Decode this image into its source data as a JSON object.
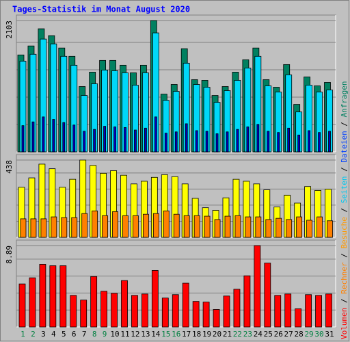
{
  "legend_separator": " / ",
  "chart_data": [
    {
      "type": "bar",
      "title": "Tages-Statistik im Monat August 2020",
      "ylim": [
        0,
        2103
      ],
      "yticks": [
        2103
      ],
      "series": [
        {
          "name": "Anfragen",
          "color": "#008060",
          "legend_color": "#008060",
          "values": [
            1552,
            1696,
            1971,
            1861,
            1663,
            1530,
            1046,
            1277,
            1464,
            1464,
            1387,
            1266,
            1387,
            2103,
            925,
            1079,
            1652,
            1156,
            1145,
            903,
            1046,
            1277,
            1475,
            1663,
            1156,
            1035,
            1398,
            760,
            1200,
            1057,
            1112
          ]
        },
        {
          "name": "Dateien",
          "color": "#00d8f8",
          "legend_color": "#0040ff",
          "values": [
            1453,
            1563,
            1806,
            1729,
            1530,
            1387,
            903,
            1090,
            1310,
            1299,
            1266,
            1068,
            1266,
            1905,
            826,
            969,
            1420,
            1079,
            1035,
            793,
            980,
            1145,
            1343,
            1530,
            1057,
            958,
            1233,
            639,
            1068,
            958,
            991
          ]
        },
        {
          "name": "Seiten",
          "color": "#0000c0",
          "legend_color": "#00c8f0",
          "values": [
            420,
            480,
            560,
            520,
            470,
            430,
            330,
            360,
            410,
            400,
            390,
            350,
            380,
            560,
            300,
            320,
            450,
            340,
            330,
            290,
            320,
            360,
            400,
            440,
            330,
            310,
            380,
            270,
            340,
            310,
            330
          ]
        }
      ]
    },
    {
      "type": "bar",
      "ylim": [
        0,
        438
      ],
      "yticks": [
        438
      ],
      "series": [
        {
          "name": "Besuche",
          "color": "#ffff00",
          "legend_color": "#ff9900",
          "values": [
            284,
            337,
            415,
            389,
            284,
            329,
            438,
            408,
            363,
            378,
            352,
            303,
            318,
            340,
            355,
            344,
            303,
            221,
            168,
            153,
            224,
            329,
            318,
            303,
            269,
            172,
            239,
            194,
            288,
            266,
            273
          ]
        },
        {
          "name": "Rechner",
          "color": "#ff8000",
          "legend_color": "#ff8000",
          "values": [
            105,
            105,
            105,
            116,
            112,
            112,
            135,
            150,
            123,
            146,
            123,
            123,
            131,
            135,
            150,
            131,
            123,
            123,
            120,
            101,
            120,
            123,
            116,
            116,
            101,
            108,
            101,
            116,
            97,
            116,
            94
          ]
        }
      ]
    },
    {
      "type": "bar",
      "ylim": [
        0,
        8.89
      ],
      "yticks": [
        8.89
      ],
      "categories": [
        "1",
        "2",
        "3",
        "4",
        "5",
        "6",
        "7",
        "8",
        "9",
        "10",
        "11",
        "12",
        "13",
        "14",
        "15",
        "16",
        "17",
        "18",
        "19",
        "20",
        "21",
        "22",
        "23",
        "24",
        "25",
        "26",
        "27",
        "28",
        "29",
        "30",
        "31"
      ],
      "category_colors": [
        "#008040",
        "#008040",
        "#000000",
        "#000000",
        "#000000",
        "#000000",
        "#000000",
        "#008040",
        "#008040",
        "#000000",
        "#000000",
        "#000000",
        "#000000",
        "#000000",
        "#008040",
        "#008040",
        "#000000",
        "#000000",
        "#000000",
        "#000000",
        "#000000",
        "#008040",
        "#008040",
        "#000000",
        "#000000",
        "#000000",
        "#000000",
        "#000000",
        "#008040",
        "#008040",
        "#000000"
      ],
      "series": [
        {
          "name": "Volumen",
          "color": "#ff0000",
          "legend_color": "#ff0000",
          "values": [
            4.7,
            5.37,
            6.84,
            6.69,
            6.69,
            3.45,
            2.94,
            5.51,
            3.9,
            3.68,
            5.07,
            3.45,
            3.6,
            6.17,
            3.16,
            3.53,
            4.78,
            2.79,
            2.72,
            1.91,
            3.38,
            4.12,
            5.59,
            8.89,
            6.98,
            3.45,
            3.6,
            1.99,
            3.53,
            3.45,
            3.6
          ]
        }
      ]
    }
  ]
}
